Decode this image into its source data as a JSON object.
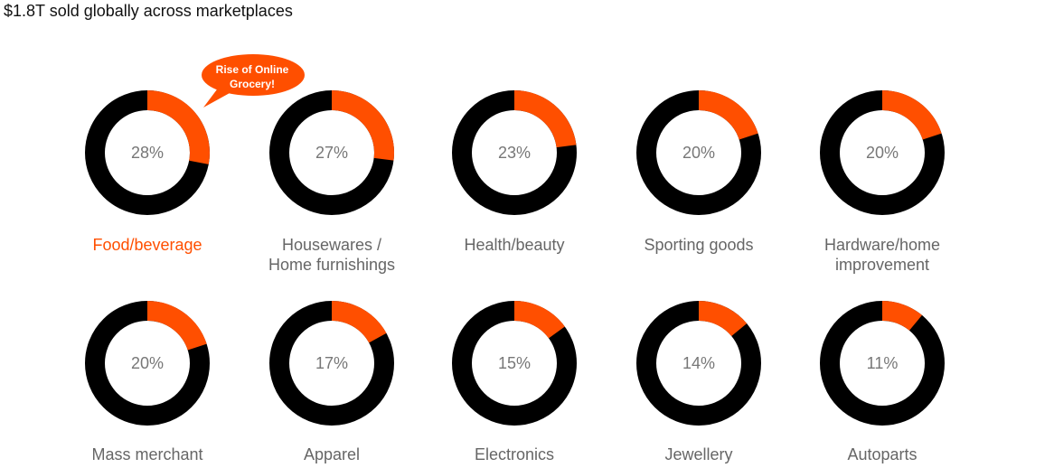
{
  "title": "$1.8T sold globally across marketplaces",
  "colors": {
    "accent": "#ff4f00",
    "remainder": "#000000",
    "text": "#666666",
    "pct_text": "#777777"
  },
  "callout": {
    "line1": "Rise of Online",
    "line2": "Grocery!"
  },
  "chart_data": {
    "type": "donut",
    "title": "$1.8T sold globally across marketplaces",
    "unit": "%",
    "categories": [
      {
        "label": [
          "Food/beverage"
        ],
        "value": 28,
        "highlight": true
      },
      {
        "label": [
          "Housewares /",
          "Home furnishings"
        ],
        "value": 27
      },
      {
        "label": [
          "Health/beauty"
        ],
        "value": 23
      },
      {
        "label": [
          "Sporting goods"
        ],
        "value": 20
      },
      {
        "label": [
          "Hardware/home",
          "improvement"
        ],
        "value": 20
      },
      {
        "label": [
          "Mass merchant"
        ],
        "value": 20
      },
      {
        "label": [
          "Apparel"
        ],
        "value": 17
      },
      {
        "label": [
          "Electronics"
        ],
        "value": 15
      },
      {
        "label": [
          "Jewellery"
        ],
        "value": 14
      },
      {
        "label": [
          "Autoparts"
        ],
        "value": 11
      }
    ]
  }
}
